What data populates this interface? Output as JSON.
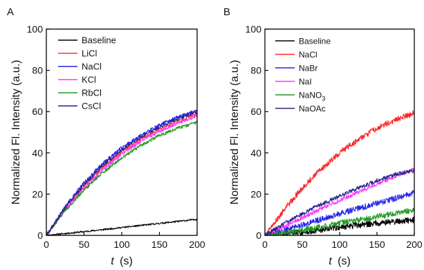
{
  "chart_data": [
    {
      "panel_label": "A",
      "type": "line",
      "xlabel_var": "t",
      "xlabel_unit": "(s)",
      "ylabel": "Normalized Fl. Intensity (a.u.)",
      "xlim": [
        0,
        200
      ],
      "ylim": [
        0,
        100
      ],
      "xticks": [
        0,
        50,
        100,
        150,
        200
      ],
      "yticks": [
        0,
        20,
        40,
        60,
        80,
        100
      ],
      "grid": false,
      "legend_position": "top-left",
      "series": [
        {
          "name": "Baseline",
          "color": "#000000",
          "x": [
            0,
            50,
            100,
            150,
            200
          ],
          "y": [
            0,
            1.8,
            3.8,
            5.8,
            7.8
          ],
          "noise": 0.4
        },
        {
          "name": "LiCl",
          "color": "#ff3333",
          "x": [
            0,
            25,
            50,
            75,
            100,
            125,
            150,
            175,
            200
          ],
          "y": [
            0,
            13,
            24,
            33,
            40.5,
            46.5,
            51.5,
            55.5,
            59
          ],
          "noise": 0.8
        },
        {
          "name": "NaCl",
          "color": "#2222ee",
          "x": [
            0,
            25,
            50,
            75,
            100,
            125,
            150,
            175,
            200
          ],
          "y": [
            0,
            14,
            25.5,
            35,
            42.5,
            48.5,
            53.5,
            57.5,
            60.5
          ],
          "noise": 0.8
        },
        {
          "name": "KCl",
          "color": "#ff33ff",
          "x": [
            0,
            25,
            50,
            75,
            100,
            125,
            150,
            175,
            200
          ],
          "y": [
            0,
            12.5,
            23,
            32,
            39.5,
            45.5,
            50.5,
            54.5,
            58
          ],
          "noise": 0.8
        },
        {
          "name": "RbCl",
          "color": "#229922",
          "x": [
            0,
            25,
            50,
            75,
            100,
            125,
            150,
            175,
            200
          ],
          "y": [
            0,
            12,
            22,
            30.5,
            37.5,
            43.5,
            48.5,
            52,
            55
          ],
          "noise": 0.8
        },
        {
          "name": "CsCl",
          "color": "#22228a",
          "x": [
            0,
            25,
            50,
            75,
            100,
            125,
            150,
            175,
            200
          ],
          "y": [
            0,
            13.5,
            24.5,
            34,
            41.5,
            47.5,
            52.5,
            56.5,
            60
          ],
          "noise": 0.8
        }
      ]
    },
    {
      "panel_label": "B",
      "type": "line",
      "xlabel_var": "t",
      "xlabel_unit": "(s)",
      "ylabel": "Normalized Fl. Intensity (a.u.)",
      "xlim": [
        0,
        200
      ],
      "ylim": [
        0,
        100
      ],
      "xticks": [
        0,
        50,
        100,
        150,
        200
      ],
      "yticks": [
        0,
        20,
        40,
        60,
        80,
        100
      ],
      "grid": false,
      "legend_position": "top-left",
      "series": [
        {
          "name": "Baseline",
          "color": "#000000",
          "x": [
            0,
            50,
            100,
            150,
            200
          ],
          "y": [
            0,
            1.5,
            4,
            6,
            7.5
          ],
          "noise": 1.5
        },
        {
          "name": "NaCl",
          "color": "#ff2222",
          "x": [
            0,
            25,
            50,
            75,
            100,
            125,
            150,
            175,
            200
          ],
          "y": [
            0,
            12,
            23,
            32,
            40,
            46.5,
            52,
            56,
            59.5
          ],
          "noise": 1.4
        },
        {
          "name": "NaBr",
          "color": "#2222ee",
          "x": [
            0,
            50,
            100,
            150,
            200
          ],
          "y": [
            0,
            5,
            10.5,
            15.5,
            20.5
          ],
          "noise": 1.4
        },
        {
          "name": "NaI",
          "color": "#ff33ff",
          "x": [
            0,
            50,
            100,
            150,
            200
          ],
          "y": [
            0,
            8.5,
            17,
            25,
            32
          ],
          "noise": 1.0
        },
        {
          "name_main": "NaNO",
          "name_sub": "3",
          "color": "#229922",
          "x": [
            0,
            50,
            100,
            150,
            200
          ],
          "y": [
            0,
            2.5,
            6,
            9,
            12.5
          ],
          "noise": 1.4
        },
        {
          "name": "NaOAc",
          "color": "#22228a",
          "x": [
            0,
            25,
            50,
            75,
            100,
            125,
            150,
            175,
            200
          ],
          "y": [
            0,
            5.5,
            10.5,
            15,
            19,
            23,
            26.5,
            29.5,
            31.5
          ],
          "noise": 1.0
        }
      ]
    }
  ]
}
